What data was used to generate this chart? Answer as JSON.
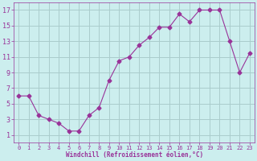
{
  "x": [
    0,
    1,
    2,
    3,
    4,
    5,
    6,
    7,
    8,
    9,
    10,
    11,
    12,
    13,
    14,
    15,
    16,
    17,
    18,
    19,
    20,
    21,
    22,
    23
  ],
  "y": [
    6,
    6,
    3.5,
    3,
    2.5,
    1.5,
    1.5,
    3.5,
    4.5,
    8,
    10.5,
    11,
    12.5,
    13.5,
    14.8,
    14.8,
    16.5,
    15.5,
    17,
    17,
    17,
    13,
    9,
    11.5
  ],
  "line_color": "#993399",
  "marker": "D",
  "marker_size": 2.5,
  "bg_color": "#cceeee",
  "grid_color": "#aacccc",
  "xlabel": "Windchill (Refroidissement éolien,°C)",
  "xlabel_color": "#993399",
  "tick_color": "#993399",
  "xlim": [
    -0.5,
    23.5
  ],
  "ylim": [
    0,
    18
  ],
  "yticks": [
    1,
    3,
    5,
    7,
    9,
    11,
    13,
    15,
    17
  ],
  "xticks": [
    0,
    1,
    2,
    3,
    4,
    5,
    6,
    7,
    8,
    9,
    10,
    11,
    12,
    13,
    14,
    15,
    16,
    17,
    18,
    19,
    20,
    21,
    22,
    23
  ],
  "figsize": [
    3.2,
    2.0
  ],
  "dpi": 100
}
